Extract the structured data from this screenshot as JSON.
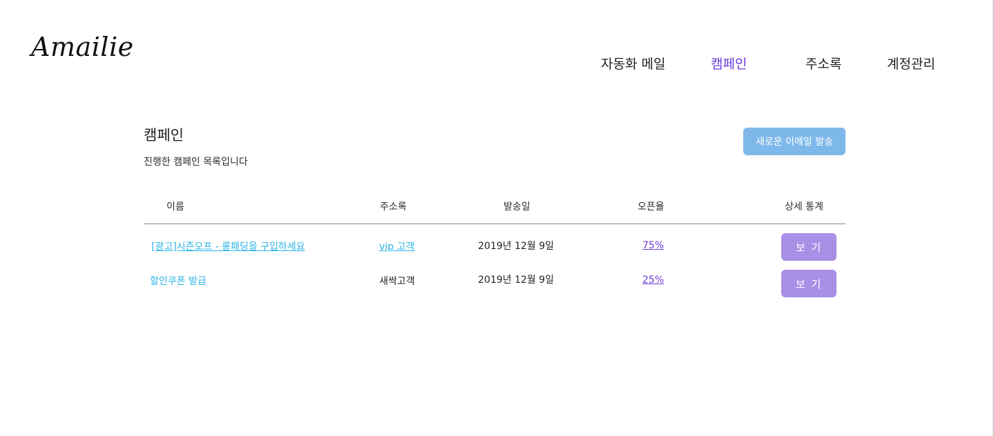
{
  "brand": {
    "logo_text": "Amailie"
  },
  "nav": {
    "items": [
      {
        "label": "자동화 메일",
        "active": false
      },
      {
        "label": "캠페인",
        "active": true
      },
      {
        "label": "주소록",
        "active": false
      },
      {
        "label": "계정관리",
        "active": false
      }
    ]
  },
  "header": {
    "title": "캠페인",
    "subtitle": "진행한 캠페인 목록입니다",
    "new_button_label": "새로운 이메일 발송"
  },
  "table": {
    "columns": [
      "이름",
      "주소록",
      "발송일",
      "오픈율",
      "상세 통계"
    ],
    "rows": [
      {
        "name": "[광고]시즌오프 - 롱패딩을 구입하세요",
        "addressbook": "vip 고객",
        "date": "2019년 12월 9일",
        "open_rate": "75%",
        "action": "보 기"
      },
      {
        "name": "할인쿠폰 발급",
        "addressbook": "새싹고객",
        "date": "2019년 12월 9일",
        "open_rate": "25%",
        "action": "보 기"
      }
    ]
  },
  "colors": {
    "accent_purple": "#6a3ad6",
    "link_cyan": "#2ab4e8",
    "new_button_blue": "#7eb8ea",
    "view_button_purple": "#a98fe6"
  }
}
